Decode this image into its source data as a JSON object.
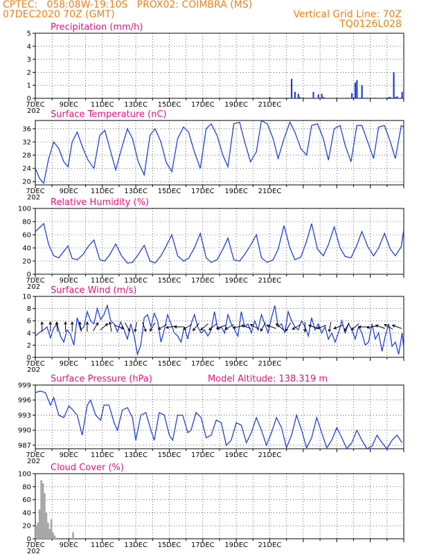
{
  "header": {
    "line1_left": "CPTEC:   058:08W-19:10S   PROX02: COIMBRA (MS)",
    "line2_left": "07DEC2020 70Z (GMT)",
    "line2_right": "Vertical Grid Line: 70Z",
    "line3_right": "TQ0126L028"
  },
  "x_tick_labels": [
    "7DEC",
    "9DEC",
    "11DEC",
    "13DEC",
    "15DEC",
    "17DEC",
    "19DEC",
    "21DEC"
  ],
  "x_corner_label": "202",
  "colors": {
    "title": "#e0117a",
    "header": "#e8801a",
    "line": "#1f3fd8",
    "bar": "#1f3fd8",
    "cloud": "#a8a8a8"
  },
  "chart_data": [
    {
      "type": "bar",
      "title": "Precipitation (mm/h)",
      "ylim": [
        0,
        5
      ],
      "yticks": [
        0,
        1,
        2,
        3,
        4,
        5
      ],
      "x_unit": "days since 7DEC 00Z",
      "x": [
        10.2,
        13.3,
        14.0,
        15.1,
        15.3,
        15.5,
        15.7,
        15.8,
        16.0,
        16.6,
        16.9,
        17.1,
        17.2,
        18.6,
        18.9,
        19.0,
        19.1,
        19.2,
        19.4,
        19.5,
        19.6,
        19.8,
        20.3,
        21.0,
        21.1,
        21.2,
        21.4,
        21.5,
        21.6,
        21.8,
        21.9
      ],
      "values": [
        0.05,
        0.05,
        0.1,
        0.05,
        1.5,
        0.5,
        0.35,
        0.1,
        0.05,
        0.5,
        0.3,
        0.35,
        0.1,
        0.05,
        0.4,
        0.05,
        1.2,
        1.4,
        0.05,
        1.0,
        0.05,
        0.05,
        0.05,
        0.05,
        0.1,
        0.1,
        2.0,
        0.1,
        0.15,
        0.05,
        0.5
      ]
    },
    {
      "type": "line",
      "title": "Surface Temperature (nC)",
      "ylim": [
        19,
        38.5
      ],
      "yticks": [
        20,
        24,
        28,
        32,
        36
      ],
      "x_unit": "days since 7DEC 00Z",
      "x": [
        0.0,
        0.25,
        0.5,
        0.8,
        1.1,
        1.4,
        1.7,
        1.95,
        2.2,
        2.5,
        2.85,
        3.15,
        3.5,
        3.85,
        4.15,
        4.45,
        4.8,
        5.15,
        5.5,
        5.8,
        6.15,
        6.5,
        6.85,
        7.15,
        7.5,
        7.8,
        8.15,
        8.5,
        8.85,
        9.15,
        9.5,
        9.85,
        10.2,
        10.5,
        10.85,
        11.2,
        11.5,
        11.85,
        12.2,
        12.5,
        12.85,
        13.2,
        13.5,
        13.85,
        14.2,
        14.5,
        14.85,
        15.2,
        15.5,
        15.85,
        16.2,
        16.5,
        16.85,
        17.2,
        17.5,
        17.85,
        18.2,
        18.5,
        18.85,
        19.2,
        19.5,
        19.85,
        20.2,
        20.5,
        20.85,
        21.2,
        21.5,
        21.85,
        22.0
      ],
      "values": [
        24,
        21,
        19.5,
        27,
        32,
        30,
        26,
        24.5,
        32,
        35,
        30,
        26.5,
        24,
        34,
        35.5,
        30,
        23.5,
        30,
        36,
        33,
        26,
        22,
        34,
        36,
        32,
        26,
        23,
        33,
        36.5,
        35,
        29,
        24,
        36,
        37.5,
        34,
        28,
        24.5,
        37.5,
        38,
        32,
        26,
        29,
        38.5,
        37.5,
        33,
        27,
        33,
        38,
        35,
        30,
        28,
        37,
        37.5,
        33,
        26.5,
        36,
        37,
        31,
        26,
        37,
        37,
        32,
        27,
        36.5,
        37,
        32,
        27,
        37,
        36.5
      ]
    },
    {
      "type": "line",
      "title": "Relative Humidity (%)",
      "ylim": [
        0,
        100
      ],
      "yticks": [
        0,
        20,
        40,
        60,
        80,
        100
      ],
      "x_unit": "days since 7DEC 00Z",
      "x": [
        0.0,
        0.3,
        0.5,
        0.8,
        1.1,
        1.4,
        1.7,
        1.95,
        2.2,
        2.5,
        2.85,
        3.15,
        3.5,
        3.85,
        4.15,
        4.45,
        4.8,
        5.15,
        5.5,
        5.8,
        6.15,
        6.5,
        6.85,
        7.15,
        7.5,
        7.8,
        8.15,
        8.5,
        8.85,
        9.15,
        9.5,
        9.85,
        10.2,
        10.5,
        10.85,
        11.2,
        11.5,
        11.85,
        12.2,
        12.5,
        12.85,
        13.2,
        13.5,
        13.85,
        14.2,
        14.5,
        14.85,
        15.2,
        15.5,
        15.85,
        16.2,
        16.5,
        16.85,
        17.2,
        17.5,
        17.85,
        18.2,
        18.5,
        18.85,
        19.2,
        19.5,
        19.85,
        20.2,
        20.5,
        20.85,
        21.2,
        21.5,
        21.85,
        22.0
      ],
      "values": [
        65,
        72,
        77,
        45,
        28,
        25,
        35,
        43,
        24,
        22,
        30,
        42,
        52,
        22,
        20,
        30,
        46,
        28,
        17,
        18,
        30,
        44,
        20,
        17,
        28,
        42,
        60,
        28,
        20,
        24,
        40,
        62,
        25,
        18,
        22,
        38,
        55,
        22,
        20,
        30,
        44,
        60,
        25,
        18,
        22,
        38,
        74,
        40,
        22,
        26,
        50,
        77,
        38,
        28,
        45,
        72,
        40,
        27,
        25,
        44,
        65,
        42,
        28,
        40,
        62,
        38,
        28,
        42,
        68
      ]
    },
    {
      "type": "line",
      "title": "Surface Wind (m/s)",
      "ylim": [
        0,
        10
      ],
      "yticks": [
        0,
        2,
        4,
        6,
        8,
        10
      ],
      "x_unit": "days since 7DEC 00Z",
      "x": [
        0.0,
        0.3,
        0.5,
        0.7,
        0.9,
        1.1,
        1.3,
        1.5,
        1.7,
        1.9,
        2.1,
        2.3,
        2.5,
        2.7,
        2.9,
        3.1,
        3.3,
        3.5,
        3.7,
        3.9,
        4.1,
        4.3,
        4.5,
        4.7,
        4.9,
        5.1,
        5.3,
        5.5,
        5.7,
        5.9,
        6.1,
        6.3,
        6.5,
        6.7,
        6.9,
        7.1,
        7.3,
        7.5,
        7.7,
        7.9,
        8.1,
        8.3,
        8.5,
        8.7,
        8.9,
        9.1,
        9.3,
        9.5,
        9.7,
        9.9,
        10.1,
        10.3,
        10.5,
        10.7,
        10.9,
        11.1,
        11.3,
        11.5,
        11.7,
        11.9,
        12.1,
        12.3,
        12.5,
        12.7,
        12.9,
        13.1,
        13.3,
        13.5,
        13.7,
        13.9,
        14.1,
        14.3,
        14.5,
        14.7,
        14.9,
        15.1,
        15.3,
        15.5,
        15.7,
        15.9,
        16.1,
        16.3,
        16.5,
        16.7,
        16.9,
        17.1,
        17.3,
        17.5,
        17.7,
        17.9,
        18.1,
        18.3,
        18.5,
        18.7,
        18.9,
        19.1,
        19.3,
        19.5,
        19.7,
        19.9,
        20.1,
        20.3,
        20.5,
        20.7,
        20.9,
        21.1,
        21.3,
        21.5,
        21.7,
        21.9,
        22.0
      ],
      "values": [
        3.5,
        4.2,
        4.5,
        5.0,
        3.2,
        4.8,
        5.5,
        3.5,
        2.5,
        4.5,
        3.8,
        2.0,
        6.5,
        4.5,
        5.0,
        7.5,
        6.0,
        5.5,
        8.0,
        6.2,
        7.0,
        8.5,
        6.0,
        5.5,
        4.2,
        5.8,
        4.5,
        3.0,
        5.5,
        3.5,
        0.5,
        2.0,
        6.5,
        7.0,
        5.0,
        7.2,
        6.0,
        2.5,
        4.5,
        7.0,
        5.5,
        4.0,
        3.5,
        2.5,
        5.0,
        3.0,
        5.5,
        7.0,
        5.0,
        4.0,
        4.5,
        3.5,
        4.5,
        7.5,
        4.5,
        5.0,
        4.0,
        7.0,
        5.5,
        4.5,
        3.5,
        7.5,
        5.0,
        5.5,
        4.0,
        6.0,
        4.5,
        7.0,
        5.5,
        4.0,
        6.5,
        8.5,
        5.0,
        5.5,
        4.0,
        7.5,
        6.0,
        5.0,
        4.5,
        6.0,
        5.0,
        3.5,
        6.5,
        4.5,
        5.5,
        4.0,
        5.0,
        3.0,
        4.0,
        2.5,
        4.0,
        6.0,
        4.0,
        5.5,
        4.5,
        3.0,
        5.0,
        4.0,
        2.0,
        2.5,
        5.5,
        3.0,
        4.0,
        1.0,
        3.5,
        5.5,
        1.8,
        2.5,
        0.5,
        4.0,
        1.5
      ]
    },
    {
      "type": "line",
      "title": "Surface Pressure (hPa)",
      "annotation": "Model Altitude: 138.319 m",
      "ylim": [
        986.3,
        999
      ],
      "yticks": [
        987,
        990,
        993,
        996,
        999
      ],
      "x_unit": "days since 7DEC 00Z",
      "x": [
        0.0,
        0.3,
        0.6,
        0.9,
        1.1,
        1.4,
        1.7,
        2.0,
        2.2,
        2.5,
        2.8,
        3.1,
        3.3,
        3.6,
        3.9,
        4.1,
        4.4,
        4.7,
        4.9,
        5.2,
        5.5,
        5.8,
        6.0,
        6.3,
        6.6,
        6.9,
        7.1,
        7.4,
        7.7,
        8.0,
        8.2,
        8.5,
        8.8,
        9.1,
        9.3,
        9.6,
        9.9,
        10.2,
        10.5,
        10.8,
        11.1,
        11.4,
        11.7,
        12.0,
        12.3,
        12.6,
        12.9,
        13.2,
        13.5,
        13.8,
        14.1,
        14.4,
        14.7,
        15.0,
        15.3,
        15.6,
        15.9,
        16.2,
        16.5,
        16.8,
        17.1,
        17.4,
        17.7,
        18.0,
        18.3,
        18.6,
        18.9,
        19.2,
        19.5,
        19.8,
        20.1,
        20.4,
        20.7,
        21.0,
        21.3,
        21.6,
        21.9
      ],
      "values": [
        997.5,
        997.8,
        997.5,
        995.0,
        996.5,
        993.0,
        992.5,
        994.8,
        994.2,
        993.0,
        989.0,
        995.0,
        996.0,
        993.0,
        992.0,
        995.0,
        995.0,
        991.5,
        990.0,
        994.0,
        994.5,
        992.5,
        988.0,
        993.0,
        993.5,
        990.0,
        988.0,
        993.5,
        993.0,
        989.0,
        988.0,
        993.0,
        993.0,
        989.5,
        990.0,
        993.5,
        992.5,
        988.5,
        989.0,
        992.0,
        991.5,
        987.0,
        988.0,
        991.5,
        991.0,
        987.5,
        989.5,
        992.5,
        990.0,
        987.0,
        989.5,
        992.5,
        990.5,
        986.5,
        989.0,
        993.0,
        990.0,
        986.5,
        988.5,
        992.5,
        989.5,
        986.5,
        988.0,
        990.5,
        988.5,
        986.3,
        987.5,
        990.0,
        988.0,
        986.3,
        986.8,
        989.0,
        987.5,
        986.3,
        988.0,
        989.0,
        987.5
      ]
    },
    {
      "type": "area",
      "title": "Cloud Cover (%)",
      "ylim": [
        0,
        100
      ],
      "yticks": [
        0,
        20,
        40,
        60,
        80,
        100
      ],
      "x_unit": "days since 7DEC 00Z",
      "x": [
        0.0,
        0.1,
        0.2,
        0.3,
        0.4,
        0.5,
        0.6,
        0.7,
        0.8,
        0.9,
        1.0,
        1.1,
        1.2,
        1.3,
        1.4,
        1.5,
        1.6,
        1.7,
        1.8,
        1.9,
        2.0,
        2.1,
        2.2,
        2.3,
        2.4,
        2.5,
        2.6,
        2.7,
        2.8,
        2.9,
        3.0,
        3.1,
        3.2,
        3.3,
        3.4,
        3.5,
        3.6,
        3.7,
        3.8,
        3.9,
        4.0,
        4.1,
        4.2,
        4.3,
        4.4,
        4.5,
        4.6,
        4.7,
        4.8,
        4.9,
        5.0,
        5.1,
        5.2,
        5.3,
        5.4,
        5.5,
        5.6,
        5.7,
        5.8,
        5.9,
        6.0,
        6.1,
        6.2,
        6.3,
        6.4,
        6.5,
        6.6,
        6.7,
        6.8,
        6.9,
        7.0,
        7.1,
        7.2,
        7.3,
        7.4,
        7.5,
        7.6,
        7.7,
        7.8,
        7.9,
        8.0,
        8.1,
        8.2,
        8.3,
        8.4,
        8.5,
        8.6,
        8.7,
        8.8,
        8.9,
        9.0,
        9.1,
        9.2,
        9.3,
        9.4,
        9.5,
        9.6,
        9.7,
        9.8,
        9.9,
        10.0,
        10.1,
        10.2,
        10.3,
        10.4,
        10.5,
        10.6,
        10.7,
        10.8,
        10.9,
        11.0,
        11.1,
        11.2,
        11.3,
        11.4,
        11.5,
        11.6,
        11.7,
        11.8,
        11.9,
        12.0,
        12.1,
        12.2,
        12.3,
        12.4,
        12.5,
        12.6,
        12.7,
        12.8,
        12.9,
        13.0,
        13.1,
        13.2,
        13.3,
        13.4,
        13.5,
        13.6,
        13.7,
        13.8,
        13.9,
        14.0,
        14.1,
        14.2,
        14.3,
        14.4,
        14.5,
        14.6,
        14.7,
        14.8,
        14.9,
        15.0,
        15.1,
        15.2,
        15.3,
        15.4,
        15.5,
        15.6,
        15.7,
        15.8,
        15.9,
        16.0,
        16.1,
        16.2,
        16.3,
        16.4,
        16.5,
        16.6,
        16.7,
        16.8,
        16.9,
        17.0,
        17.1,
        17.2,
        17.3,
        17.4,
        17.5,
        17.6,
        17.7,
        17.8,
        17.9,
        18.0,
        18.1,
        18.2,
        18.3,
        18.4,
        18.5,
        18.6,
        18.7,
        18.8,
        18.9,
        19.0,
        19.1,
        19.2,
        19.3,
        19.4,
        19.5,
        19.6,
        19.7,
        19.8,
        19.9,
        20.0,
        20.1,
        20.2,
        20.3,
        20.4,
        20.5,
        20.6,
        20.7,
        20.8,
        20.9,
        21.0,
        21.1,
        21.2,
        21.3,
        21.4,
        21.5,
        21.6,
        21.7,
        21.8,
        21.9
      ],
      "values": [
        20,
        25,
        45,
        90,
        85,
        70,
        40,
        25,
        15,
        30,
        10,
        5,
        0,
        0,
        0,
        0,
        0,
        0,
        0,
        0,
        0,
        0,
        10,
        0,
        0,
        0,
        0,
        0,
        0,
        0,
        0,
        0,
        0,
        0,
        0,
        0,
        0,
        0,
        0,
        0,
        0,
        0,
        0,
        0,
        0,
        0,
        0,
        0,
        0,
        0,
        0,
        0,
        0,
        0,
        0,
        0,
        0,
        0,
        0,
        0,
        0,
        0,
        0,
        0,
        0,
        0,
        0,
        0,
        0,
        0,
        0,
        0,
        0,
        0,
        0,
        0,
        0,
        0,
        0,
        0,
        0,
        0,
        0,
        0,
        0,
        0,
        0,
        0,
        0,
        0,
        0,
        0,
        0,
        0,
        0,
        0,
        0,
        0,
        0,
        0,
        0,
        0,
        0,
        0,
        0,
        0,
        0,
        0,
        0,
        0,
        0,
        0,
        0,
        0,
        0,
        0,
        0,
        0,
        0,
        0,
        0,
        0,
        0,
        0,
        0,
        0,
        0,
        0,
        0,
        0,
        0,
        0,
        0,
        0,
        0,
        0,
        0,
        0,
        0,
        0,
        0,
        0,
        0,
        0,
        0,
        0,
        0,
        0,
        0,
        0,
        0,
        0,
        0,
        0,
        0,
        0,
        0,
        0,
        0,
        0,
        0,
        0,
        0,
        0,
        0,
        0,
        0,
        0,
        0,
        0,
        0,
        0,
        0,
        0,
        0,
        0,
        0,
        0,
        0,
        0,
        0,
        0,
        0,
        0,
        0,
        0,
        0,
        0,
        0,
        0,
        0,
        0,
        0,
        0,
        0,
        0,
        0,
        0,
        0,
        0,
        0,
        0,
        0,
        0,
        0,
        0,
        0,
        0,
        0,
        0,
        0,
        0,
        0,
        0,
        0,
        0,
        0,
        0,
        0,
        0
      ]
    }
  ],
  "wind_arrows": {
    "x": [
      0.4,
      0.9,
      1.3,
      1.8,
      2.2,
      2.7,
      3.1,
      3.6,
      4.1,
      4.5,
      5.0,
      5.5,
      6.0,
      6.5,
      7.0,
      7.6,
      8.1,
      8.6,
      9.1,
      9.6,
      10.1,
      10.6,
      11.1,
      11.6,
      12.1,
      12.6,
      13.1,
      13.6,
      14.1,
      14.6,
      15.1,
      15.6,
      16.1,
      16.6,
      17.1,
      17.6,
      18.1,
      18.6,
      19.1,
      19.6,
      20.1,
      20.6,
      21.1,
      21.6
    ],
    "angle_deg": [
      -90,
      -90,
      -95,
      -90,
      -90,
      -100,
      -90,
      -60,
      -40,
      -100,
      20,
      60,
      100,
      70,
      120,
      150,
      170,
      180,
      150,
      130,
      140,
      140,
      160,
      150,
      170,
      200,
      210,
      120,
      200,
      220,
      120,
      150,
      90,
      200,
      160,
      100,
      160,
      120,
      140,
      180,
      170,
      200,
      210,
      200
    ]
  }
}
